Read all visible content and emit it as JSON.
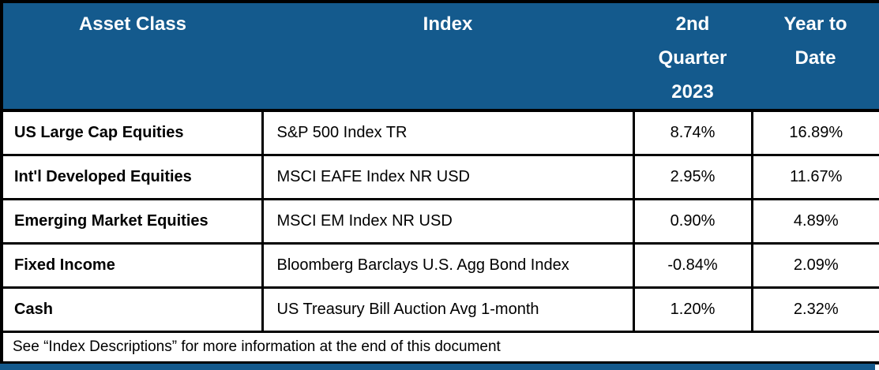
{
  "table": {
    "header": {
      "asset_class": "Asset Class",
      "index": "Index",
      "q2_2023": "2nd Quarter 2023",
      "ytd": "Year to Date"
    },
    "rows": [
      {
        "asset_class": "US Large Cap Equities",
        "index": "S&P 500 Index TR",
        "q2_2023": "8.74%",
        "ytd": "16.89%"
      },
      {
        "asset_class": "Int'l Developed Equities",
        "index": "MSCI EAFE Index NR USD",
        "q2_2023": "2.95%",
        "ytd": "11.67%"
      },
      {
        "asset_class": "Emerging Market Equities",
        "index": "MSCI EM Index NR USD",
        "q2_2023": "0.90%",
        "ytd": "4.89%"
      },
      {
        "asset_class": "Fixed Income",
        "index": "Bloomberg Barclays U.S. Agg Bond Index",
        "q2_2023": "-0.84%",
        "ytd": "2.09%"
      },
      {
        "asset_class": "Cash",
        "index": "US Treasury Bill Auction Avg 1-month",
        "q2_2023": "1.20%",
        "ytd": "2.32%"
      }
    ],
    "footnote": "See “Index Descriptions” for more information at the end of this document"
  },
  "colors": {
    "header_background": "#145a8d",
    "header_text": "#ffffff",
    "border": "#000000",
    "accent_bar": "#145a8d"
  }
}
